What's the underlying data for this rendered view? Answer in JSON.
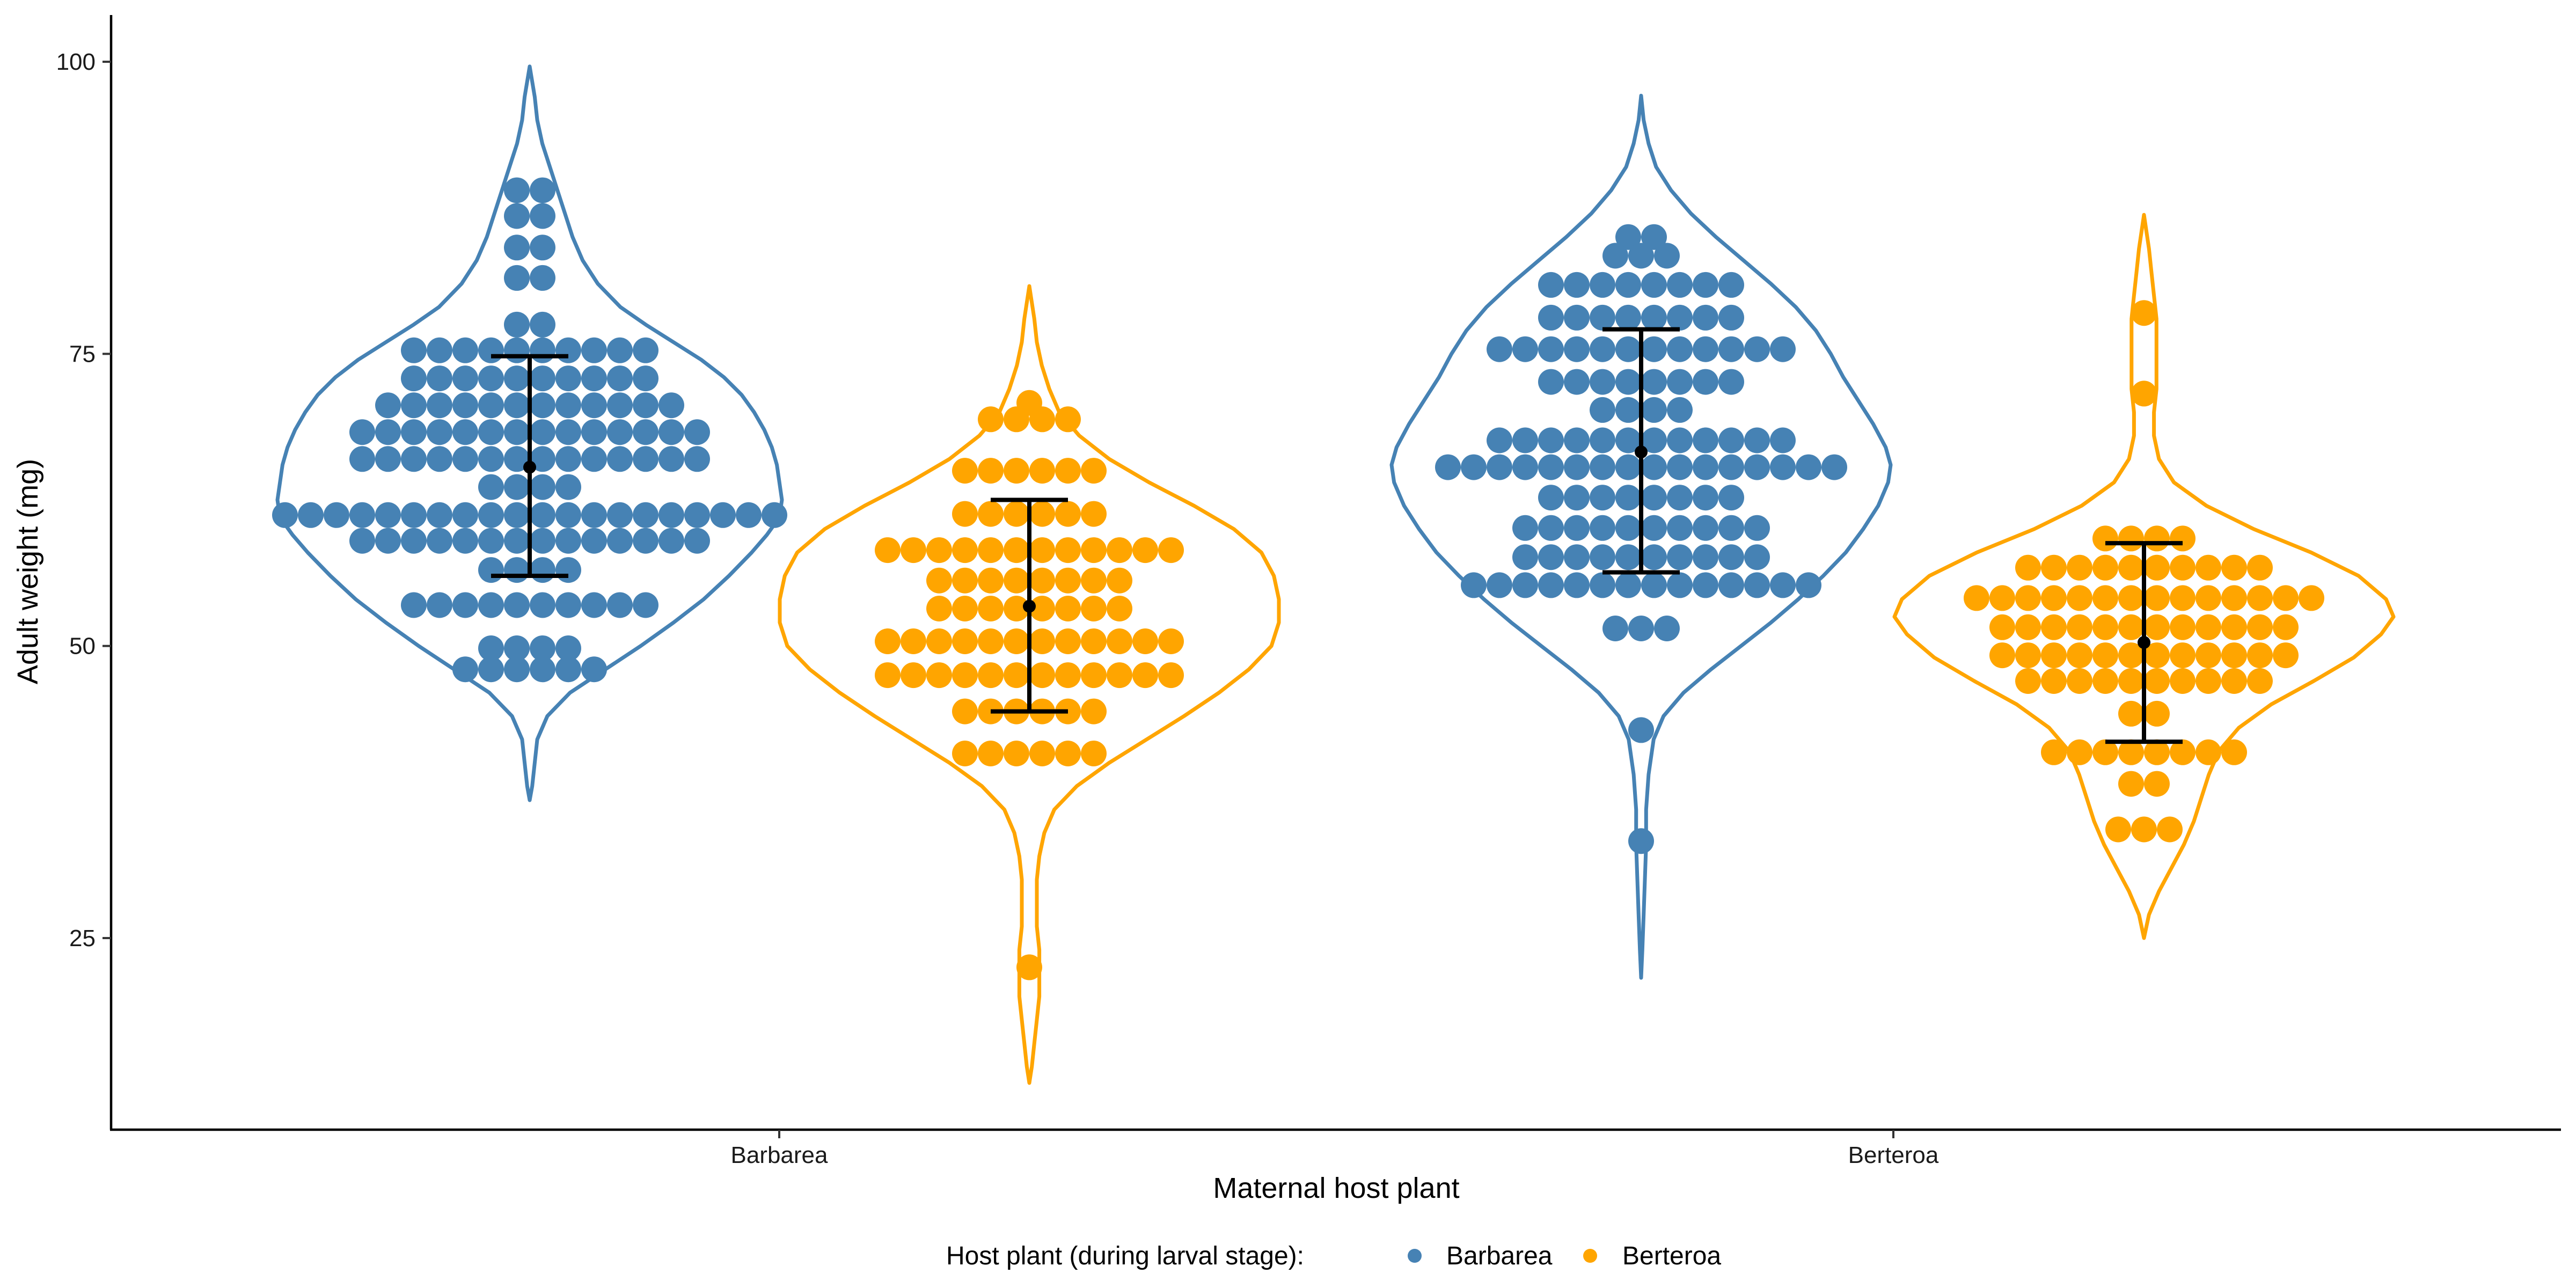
{
  "chart_data": {
    "type": "violin-dotplot",
    "xlabel": "Maternal host plant",
    "ylabel": "Adult weight (mg)",
    "ylim": [
      8.6,
      104
    ],
    "yticks": [
      25,
      50,
      75,
      100
    ],
    "categories": [
      "Barbarea",
      "Berteroa"
    ],
    "legend": {
      "title": "Host plant (during larval stage):",
      "position": "bottom",
      "entries": [
        {
          "name": "Barbarea",
          "color": "#4682B4"
        },
        {
          "name": "Berteroa",
          "color": "#FFA500"
        }
      ]
    },
    "groups": [
      {
        "maternal": "Barbarea",
        "larval": "Barbarea",
        "color": "#4682B4",
        "mean": 65.3,
        "sd_low": 56.0,
        "sd_high": 74.8,
        "violin_range": [
          36.8,
          99.6
        ],
        "violin_profile": [
          [
            36.8,
            0.0
          ],
          [
            38,
            0.01
          ],
          [
            40,
            0.02
          ],
          [
            42,
            0.03
          ],
          [
            44,
            0.07
          ],
          [
            46,
            0.16
          ],
          [
            48,
            0.3
          ],
          [
            50,
            0.44
          ],
          [
            52,
            0.57
          ],
          [
            54,
            0.69
          ],
          [
            56,
            0.79
          ],
          [
            58,
            0.88
          ],
          [
            59.5,
            0.94
          ],
          [
            61,
            0.99
          ],
          [
            62.5,
            1.0
          ],
          [
            64,
            0.99
          ],
          [
            65.5,
            0.98
          ],
          [
            67,
            0.96
          ],
          [
            68.5,
            0.93
          ],
          [
            70,
            0.89
          ],
          [
            71.5,
            0.84
          ],
          [
            73,
            0.77
          ],
          [
            74.5,
            0.68
          ],
          [
            76,
            0.57
          ],
          [
            77.5,
            0.46
          ],
          [
            79,
            0.36
          ],
          [
            81,
            0.27
          ],
          [
            83,
            0.21
          ],
          [
            85,
            0.17
          ],
          [
            87,
            0.14
          ],
          [
            89,
            0.11
          ],
          [
            91,
            0.08
          ],
          [
            93,
            0.05
          ],
          [
            95,
            0.03
          ],
          [
            97,
            0.02
          ],
          [
            99.6,
            0.0
          ]
        ],
        "points": [
          {
            "y": 89.0,
            "n": 2
          },
          {
            "y": 86.8,
            "n": 2
          },
          {
            "y": 84.1,
            "n": 2
          },
          {
            "y": 81.5,
            "n": 2
          },
          {
            "y": 77.5,
            "n": 2
          },
          {
            "y": 75.3,
            "n": 10
          },
          {
            "y": 72.9,
            "n": 10
          },
          {
            "y": 70.6,
            "n": 12
          },
          {
            "y": 68.3,
            "n": 14
          },
          {
            "y": 66.0,
            "n": 14
          },
          {
            "y": 63.6,
            "n": 4
          },
          {
            "y": 61.2,
            "n": 20
          },
          {
            "y": 59.0,
            "n": 14
          },
          {
            "y": 56.5,
            "n": 4
          },
          {
            "y": 53.5,
            "n": 10
          },
          {
            "y": 49.8,
            "n": 4
          },
          {
            "y": 48.0,
            "n": 6
          }
        ]
      },
      {
        "maternal": "Barbarea",
        "larval": "Berteroa",
        "color": "#FFA500",
        "mean": 53.4,
        "sd_low": 44.4,
        "sd_high": 62.5,
        "violin_range": [
          12.6,
          80.8
        ],
        "violin_profile": [
          [
            12.6,
            0.0
          ],
          [
            14,
            0.01
          ],
          [
            16,
            0.02
          ],
          [
            18,
            0.03
          ],
          [
            20,
            0.04
          ],
          [
            22,
            0.04
          ],
          [
            24,
            0.04
          ],
          [
            26,
            0.03
          ],
          [
            28,
            0.03
          ],
          [
            30,
            0.03
          ],
          [
            32,
            0.04
          ],
          [
            34,
            0.06
          ],
          [
            36,
            0.1
          ],
          [
            38,
            0.19
          ],
          [
            40,
            0.32
          ],
          [
            42,
            0.47
          ],
          [
            44,
            0.62
          ],
          [
            46,
            0.76
          ],
          [
            48,
            0.88
          ],
          [
            50,
            0.97
          ],
          [
            52,
            1.0
          ],
          [
            54,
            1.0
          ],
          [
            56,
            0.98
          ],
          [
            58,
            0.93
          ],
          [
            60,
            0.82
          ],
          [
            62,
            0.66
          ],
          [
            64,
            0.48
          ],
          [
            66,
            0.32
          ],
          [
            68,
            0.2
          ],
          [
            70,
            0.12
          ],
          [
            72,
            0.08
          ],
          [
            74,
            0.05
          ],
          [
            76,
            0.03
          ],
          [
            78,
            0.02
          ],
          [
            80.8,
            0.0
          ]
        ],
        "points": [
          {
            "y": 70.8,
            "n": 1
          },
          {
            "y": 69.4,
            "n": 4
          },
          {
            "y": 65.0,
            "n": 6
          },
          {
            "y": 61.3,
            "n": 6
          },
          {
            "y": 58.2,
            "n": 12
          },
          {
            "y": 55.6,
            "n": 8
          },
          {
            "y": 53.2,
            "n": 8
          },
          {
            "y": 50.4,
            "n": 12
          },
          {
            "y": 47.5,
            "n": 12
          },
          {
            "y": 44.4,
            "n": 6
          },
          {
            "y": 40.8,
            "n": 6
          },
          {
            "y": 22.5,
            "n": 1
          }
        ]
      },
      {
        "maternal": "Berteroa",
        "larval": "Barbarea",
        "color": "#4682B4",
        "mean": 66.6,
        "sd_low": 56.3,
        "sd_high": 77.1,
        "violin_range": [
          21.6,
          97.1
        ],
        "violin_profile": [
          [
            21.6,
            0.0
          ],
          [
            24,
            0.005
          ],
          [
            27,
            0.01
          ],
          [
            30,
            0.015
          ],
          [
            33,
            0.02
          ],
          [
            36,
            0.02
          ],
          [
            39,
            0.03
          ],
          [
            42,
            0.05
          ],
          [
            44,
            0.09
          ],
          [
            46,
            0.17
          ],
          [
            48,
            0.28
          ],
          [
            50,
            0.4
          ],
          [
            52,
            0.52
          ],
          [
            54,
            0.63
          ],
          [
            56,
            0.73
          ],
          [
            58,
            0.82
          ],
          [
            60,
            0.89
          ],
          [
            62,
            0.95
          ],
          [
            64,
            0.99
          ],
          [
            65.5,
            1.0
          ],
          [
            67,
            0.98
          ],
          [
            69,
            0.93
          ],
          [
            71,
            0.87
          ],
          [
            73,
            0.81
          ],
          [
            75,
            0.76
          ],
          [
            77,
            0.7
          ],
          [
            79,
            0.62
          ],
          [
            81,
            0.52
          ],
          [
            83,
            0.41
          ],
          [
            85,
            0.3
          ],
          [
            87,
            0.2
          ],
          [
            89,
            0.12
          ],
          [
            91,
            0.06
          ],
          [
            93,
            0.03
          ],
          [
            95,
            0.01
          ],
          [
            97.1,
            0.0
          ]
        ],
        "points": [
          {
            "y": 85.0,
            "n": 2
          },
          {
            "y": 83.4,
            "n": 3
          },
          {
            "y": 80.9,
            "n": 8
          },
          {
            "y": 78.1,
            "n": 8
          },
          {
            "y": 75.4,
            "n": 12
          },
          {
            "y": 72.6,
            "n": 8
          },
          {
            "y": 70.2,
            "n": 4
          },
          {
            "y": 67.6,
            "n": 12
          },
          {
            "y": 65.3,
            "n": 16
          },
          {
            "y": 62.7,
            "n": 8
          },
          {
            "y": 60.1,
            "n": 10
          },
          {
            "y": 57.6,
            "n": 10
          },
          {
            "y": 55.2,
            "n": 14
          },
          {
            "y": 51.5,
            "n": 3
          },
          {
            "y": 42.8,
            "n": 1
          },
          {
            "y": 33.3,
            "n": 1
          }
        ]
      },
      {
        "maternal": "Berteroa",
        "larval": "Berteroa",
        "color": "#FFA500",
        "mean": 50.3,
        "sd_low": 41.8,
        "sd_high": 58.8,
        "violin_range": [
          25.0,
          86.9
        ],
        "violin_profile": [
          [
            25.0,
            0.0
          ],
          [
            27,
            0.02
          ],
          [
            29,
            0.06
          ],
          [
            31,
            0.11
          ],
          [
            33,
            0.16
          ],
          [
            35,
            0.2
          ],
          [
            37,
            0.23
          ],
          [
            39,
            0.26
          ],
          [
            41,
            0.3
          ],
          [
            43,
            0.38
          ],
          [
            45,
            0.51
          ],
          [
            47,
            0.68
          ],
          [
            49,
            0.84
          ],
          [
            51,
            0.95
          ],
          [
            52.5,
            1.0
          ],
          [
            54,
            0.97
          ],
          [
            56,
            0.86
          ],
          [
            58,
            0.67
          ],
          [
            60,
            0.44
          ],
          [
            62,
            0.25
          ],
          [
            64,
            0.12
          ],
          [
            66,
            0.06
          ],
          [
            68,
            0.04
          ],
          [
            70,
            0.04
          ],
          [
            72,
            0.05
          ],
          [
            74,
            0.05
          ],
          [
            76,
            0.05
          ],
          [
            78,
            0.05
          ],
          [
            80,
            0.04
          ],
          [
            82,
            0.03
          ],
          [
            84,
            0.02
          ],
          [
            86.9,
            0.0
          ]
        ],
        "points": [
          {
            "y": 78.5,
            "n": 1
          },
          {
            "y": 71.6,
            "n": 1
          },
          {
            "y": 59.2,
            "n": 4
          },
          {
            "y": 56.7,
            "n": 10
          },
          {
            "y": 54.1,
            "n": 14
          },
          {
            "y": 51.6,
            "n": 12
          },
          {
            "y": 49.2,
            "n": 12
          },
          {
            "y": 47.0,
            "n": 10
          },
          {
            "y": 44.2,
            "n": 2
          },
          {
            "y": 40.9,
            "n": 8
          },
          {
            "y": 38.2,
            "n": 2
          },
          {
            "y": 34.3,
            "n": 3
          }
        ]
      }
    ]
  }
}
